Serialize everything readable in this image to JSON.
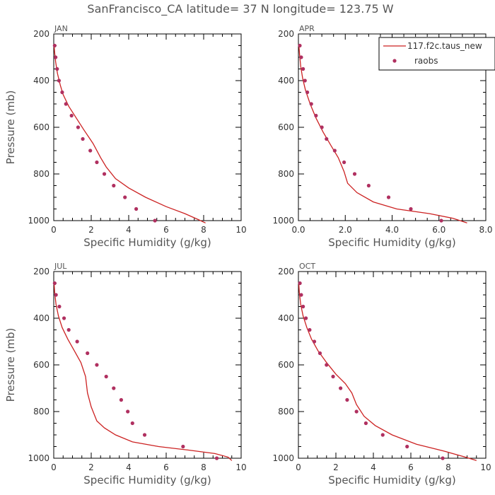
{
  "figure": {
    "title": "SanFrancisco_CA  latitude= 37 N longitude= 123.75 W",
    "colors": {
      "model": "#cc2222",
      "raobs": "#b03060"
    }
  },
  "legend": {
    "placement": "top-right of APR panel",
    "entries": [
      {
        "name": "117.f2c.taus_new",
        "style": "line"
      },
      {
        "name": "raobs",
        "style": "marker"
      }
    ]
  },
  "chart_data": [
    {
      "type": "line",
      "panel": "JAN",
      "xlabel": "Specific Humidity (g/kg)",
      "ylabel": "Pressure (mb)",
      "xlim": [
        0,
        10
      ],
      "ylim": [
        1000,
        200
      ],
      "xticks": [
        0,
        2,
        4,
        6,
        8,
        10
      ],
      "xtick_labels": [
        "0",
        "2",
        "4",
        "6",
        "8",
        "10"
      ],
      "yticks": [
        200,
        400,
        600,
        800,
        1000
      ],
      "ytick_labels": [
        "200",
        "400",
        "600",
        "800",
        "1000"
      ],
      "series": [
        {
          "name": "117.f2c.taus_new",
          "style": "line",
          "x": [
            0.02,
            0.05,
            0.1,
            0.2,
            0.35,
            0.5,
            0.8,
            1.2,
            1.6,
            2.1,
            2.5,
            2.8,
            3.3,
            4.0,
            4.9,
            6.0,
            7.0,
            7.7,
            8.1
          ],
          "y": [
            250,
            280,
            320,
            370,
            420,
            460,
            510,
            560,
            610,
            670,
            730,
            770,
            820,
            860,
            900,
            940,
            970,
            995,
            1010
          ]
        },
        {
          "name": "raobs",
          "style": "scatter",
          "x": [
            0.05,
            0.1,
            0.18,
            0.28,
            0.45,
            0.65,
            0.95,
            1.3,
            1.55,
            1.95,
            2.3,
            2.7,
            3.2,
            3.8,
            4.4,
            5.4
          ],
          "y": [
            250,
            300,
            350,
            400,
            450,
            500,
            550,
            600,
            650,
            700,
            750,
            800,
            850,
            900,
            950,
            1000
          ]
        }
      ]
    },
    {
      "type": "line",
      "panel": "APR",
      "xlabel": "Specific Humidity (g/kg)",
      "ylabel": "",
      "xlim": [
        0,
        8
      ],
      "ylim": [
        1000,
        200
      ],
      "xticks": [
        0,
        2,
        4,
        6,
        8
      ],
      "xtick_labels": [
        "0.0",
        "2.0",
        "4.0",
        "6.0",
        "8.0"
      ],
      "yticks": [
        200,
        400,
        600,
        800,
        1000
      ],
      "ytick_labels": [
        "200",
        "400",
        "600",
        "800",
        "1000"
      ],
      "series": [
        {
          "name": "117.f2c.taus_new",
          "style": "line",
          "x": [
            0.02,
            0.05,
            0.1,
            0.18,
            0.3,
            0.5,
            0.75,
            1.05,
            1.4,
            1.7,
            1.95,
            2.1,
            2.5,
            3.2,
            4.2,
            5.6,
            6.6,
            7.2
          ],
          "y": [
            250,
            290,
            340,
            390,
            440,
            500,
            560,
            620,
            680,
            730,
            790,
            840,
            880,
            920,
            950,
            970,
            990,
            1010
          ]
        },
        {
          "name": "raobs",
          "style": "scatter",
          "x": [
            0.06,
            0.12,
            0.2,
            0.28,
            0.38,
            0.55,
            0.75,
            1.0,
            1.2,
            1.55,
            1.95,
            2.4,
            3.0,
            3.85,
            4.8,
            6.1
          ],
          "y": [
            250,
            300,
            350,
            400,
            450,
            500,
            550,
            600,
            650,
            700,
            750,
            800,
            850,
            900,
            950,
            1000
          ]
        }
      ]
    },
    {
      "type": "line",
      "panel": "JUL",
      "xlabel": "Specific Humidity (g/kg)",
      "ylabel": "Pressure (mb)",
      "xlim": [
        0,
        10
      ],
      "ylim": [
        1000,
        200
      ],
      "xticks": [
        0,
        2,
        4,
        6,
        8,
        10
      ],
      "xtick_labels": [
        "0",
        "2",
        "4",
        "6",
        "8",
        "10"
      ],
      "yticks": [
        200,
        400,
        600,
        800,
        1000
      ],
      "ytick_labels": [
        "200",
        "400",
        "600",
        "800",
        "1000"
      ],
      "series": [
        {
          "name": "117.f2c.taus_new",
          "style": "line",
          "x": [
            0.02,
            0.05,
            0.12,
            0.25,
            0.45,
            0.75,
            1.1,
            1.45,
            1.7,
            1.8,
            2.0,
            2.3,
            2.7,
            3.3,
            4.2,
            5.6,
            7.2,
            8.6,
            9.3,
            9.5
          ],
          "y": [
            250,
            290,
            340,
            390,
            440,
            490,
            540,
            590,
            650,
            720,
            780,
            840,
            870,
            900,
            930,
            950,
            965,
            980,
            995,
            1010
          ]
        },
        {
          "name": "raobs",
          "style": "scatter",
          "x": [
            0.05,
            0.12,
            0.3,
            0.55,
            0.8,
            1.25,
            1.8,
            2.3,
            2.8,
            3.2,
            3.6,
            3.95,
            4.2,
            4.85,
            6.9,
            8.7
          ],
          "y": [
            250,
            300,
            350,
            400,
            450,
            500,
            550,
            600,
            650,
            700,
            750,
            800,
            850,
            900,
            950,
            1000
          ]
        }
      ]
    },
    {
      "type": "line",
      "panel": "OCT",
      "xlabel": "Specific Humidity (g/kg)",
      "ylabel": "",
      "xlim": [
        0,
        10
      ],
      "ylim": [
        1000,
        200
      ],
      "xticks": [
        0,
        2,
        4,
        6,
        8,
        10
      ],
      "xtick_labels": [
        "0",
        "2",
        "4",
        "6",
        "8",
        "10"
      ],
      "yticks": [
        200,
        400,
        600,
        800,
        1000
      ],
      "ytick_labels": [
        "200",
        "400",
        "600",
        "800",
        "1000"
      ],
      "series": [
        {
          "name": "117.f2c.taus_new",
          "style": "line",
          "x": [
            0.02,
            0.05,
            0.12,
            0.25,
            0.45,
            0.7,
            1.05,
            1.5,
            2.0,
            2.5,
            2.85,
            3.1,
            3.5,
            4.1,
            5.0,
            6.3,
            7.8,
            8.9,
            9.5
          ],
          "y": [
            250,
            290,
            340,
            390,
            440,
            490,
            540,
            590,
            640,
            680,
            720,
            770,
            820,
            860,
            900,
            940,
            970,
            995,
            1010
          ]
        },
        {
          "name": "raobs",
          "style": "scatter",
          "x": [
            0.08,
            0.15,
            0.25,
            0.4,
            0.6,
            0.85,
            1.15,
            1.5,
            1.85,
            2.25,
            2.6,
            3.1,
            3.6,
            4.5,
            5.8,
            7.7
          ],
          "y": [
            250,
            300,
            350,
            400,
            450,
            500,
            550,
            600,
            650,
            700,
            750,
            800,
            850,
            900,
            950,
            1000
          ]
        }
      ]
    }
  ]
}
